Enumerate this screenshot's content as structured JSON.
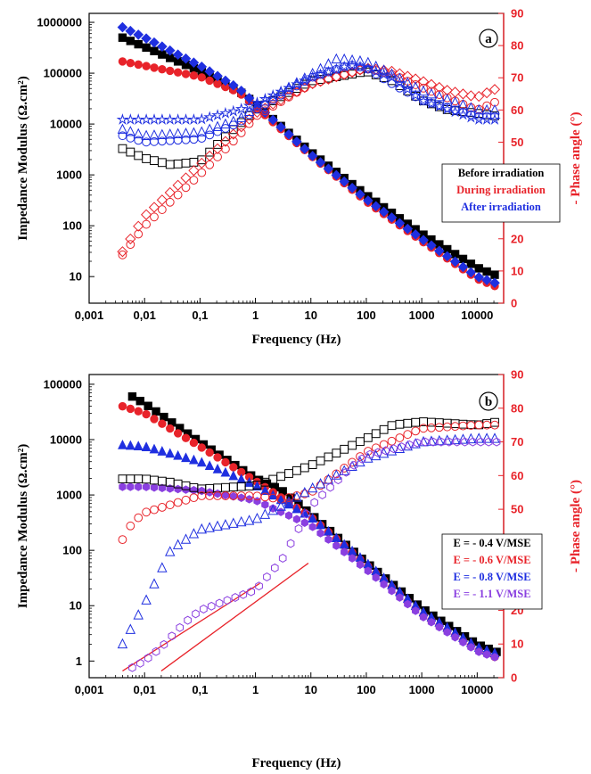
{
  "chart_data": [
    {
      "type": "scatter",
      "panel_label": "a",
      "xlabel": "Frequency (Hz)",
      "ylabel": "Impedance Modulus (Ω.cm²)",
      "y2label": "- Phase angle (°)",
      "xscale": "log",
      "yscale": "log",
      "xlim": [
        0.001,
        30000
      ],
      "ylim": [
        3,
        1500000
      ],
      "y2lim": [
        0,
        90
      ],
      "x_ticks": [
        "0,001",
        "0,01",
        "0,1",
        "1",
        "10",
        "100",
        "1000",
        "10000"
      ],
      "y_ticks": [
        "10",
        "100",
        "1000",
        "10000",
        "100000",
        "1000000"
      ],
      "y2_ticks": [
        "0",
        "10",
        "20",
        "30",
        "40",
        "50",
        "60",
        "70",
        "80",
        "90"
      ],
      "grid": false,
      "legend_position": "right",
      "legend": [
        {
          "label": "Before irradiation",
          "color": "#000000"
        },
        {
          "label": "During irradiation",
          "color": "#e8232a"
        },
        {
          "label": "After irradiation",
          "color": "#1f2fe0"
        }
      ],
      "series": [
        {
          "name": "Before irradiation",
          "color": "#000000",
          "marker": "square",
          "quantity": "modulus",
          "points": [
            [
              0.004,
              500000
            ],
            [
              0.01,
              330000
            ],
            [
              0.1,
              110000
            ],
            [
              0.5,
              45000
            ],
            [
              1,
              25000
            ],
            [
              10,
              2800
            ],
            [
              100,
              400
            ],
            [
              1000,
              70
            ],
            [
              10000,
              15
            ],
            [
              25000,
              10
            ]
          ]
        },
        {
          "name": "During irradiation",
          "color": "#e8232a",
          "marker": "circle",
          "quantity": "modulus",
          "points": [
            [
              0.004,
              170000
            ],
            [
              0.01,
              140000
            ],
            [
              0.1,
              85000
            ],
            [
              0.5,
              42000
            ],
            [
              1,
              22000
            ],
            [
              10,
              2400
            ],
            [
              100,
              300
            ],
            [
              1000,
              50
            ],
            [
              10000,
              9
            ],
            [
              25000,
              6
            ]
          ]
        },
        {
          "name": "After irradiation",
          "color": "#1f2fe0",
          "marker": "diamond",
          "quantity": "modulus",
          "points": [
            [
              0.004,
              800000
            ],
            [
              0.01,
              500000
            ],
            [
              0.1,
              140000
            ],
            [
              0.5,
              50000
            ],
            [
              1,
              25000
            ],
            [
              10,
              2500
            ],
            [
              100,
              330
            ],
            [
              1000,
              55
            ],
            [
              10000,
              10
            ],
            [
              25000,
              7
            ]
          ]
        },
        {
          "name": "Before irradiation",
          "color": "#000000",
          "marker": "square-open",
          "quantity": "phase",
          "points": [
            [
              0.004,
              48
            ],
            [
              0.01,
              45
            ],
            [
              0.03,
              43
            ],
            [
              0.1,
              44
            ],
            [
              0.3,
              52
            ],
            [
              1,
              60
            ],
            [
              10,
              69
            ],
            [
              50,
              71
            ],
            [
              100,
              72
            ],
            [
              300,
              69
            ],
            [
              1000,
              63
            ],
            [
              3000,
              60
            ],
            [
              10000,
              59
            ],
            [
              25000,
              58
            ]
          ]
        },
        {
          "name": "During irradiation",
          "color": "#e8232a",
          "marker": "circle-open",
          "quantity": "phase",
          "points": [
            [
              0.004,
              15
            ],
            [
              0.01,
              24
            ],
            [
              0.1,
              40
            ],
            [
              0.5,
              52
            ],
            [
              1,
              58
            ],
            [
              10,
              68
            ],
            [
              100,
              73
            ],
            [
              300,
              71
            ],
            [
              1000,
              67
            ],
            [
              10000,
              60
            ],
            [
              25000,
              63
            ]
          ]
        },
        {
          "name": "During irradiation",
          "color": "#e8232a",
          "marker": "diamond-open",
          "quantity": "phase",
          "points": [
            [
              0.004,
              16
            ],
            [
              0.01,
              27
            ],
            [
              0.1,
              43
            ],
            [
              0.5,
              54
            ],
            [
              1,
              59
            ],
            [
              10,
              68
            ],
            [
              100,
              73
            ],
            [
              300,
              72
            ],
            [
              1000,
              69
            ],
            [
              3000,
              66
            ],
            [
              10000,
              64
            ],
            [
              25000,
              67
            ]
          ]
        },
        {
          "name": "After irradiation",
          "color": "#1f2fe0",
          "marker": "triangle-open",
          "quantity": "phase",
          "points": [
            [
              0.004,
              54
            ],
            [
              0.01,
              52
            ],
            [
              0.1,
              53
            ],
            [
              0.5,
              57
            ],
            [
              1,
              61
            ],
            [
              10,
              71
            ],
            [
              30,
              76
            ],
            [
              100,
              75
            ],
            [
              300,
              71
            ],
            [
              1000,
              66
            ],
            [
              10000,
              60
            ],
            [
              25000,
              60
            ]
          ]
        },
        {
          "name": "After irradiation",
          "color": "#1f2fe0",
          "marker": "star-open",
          "quantity": "phase",
          "points": [
            [
              0.004,
              57
            ],
            [
              0.01,
              57
            ],
            [
              0.1,
              57
            ],
            [
              0.5,
              60
            ],
            [
              1,
              62
            ],
            [
              10,
              70
            ],
            [
              50,
              74
            ],
            [
              100,
              73
            ],
            [
              300,
              70
            ],
            [
              1000,
              63
            ],
            [
              10000,
              57
            ],
            [
              25000,
              57
            ]
          ]
        },
        {
          "name": "After irradiation",
          "color": "#1f2fe0",
          "marker": "circle-open",
          "quantity": "phase",
          "points": [
            [
              0.004,
              52
            ],
            [
              0.01,
              50
            ],
            [
              0.1,
              51
            ],
            [
              0.5,
              56
            ],
            [
              1,
              60
            ],
            [
              10,
              70
            ],
            [
              50,
              74
            ],
            [
              100,
              73
            ],
            [
              300,
              68
            ],
            [
              1000,
              63
            ],
            [
              10000,
              58
            ],
            [
              25000,
              58
            ]
          ]
        }
      ]
    },
    {
      "type": "scatter",
      "panel_label": "b",
      "xlabel": "Frequency (Hz)",
      "ylabel": "Impedance Modulus (Ω.cm²)",
      "y2label": "- Phase angle (°)",
      "xscale": "log",
      "yscale": "log",
      "xlim": [
        0.001,
        30000
      ],
      "ylim": [
        0.5,
        150000
      ],
      "y2lim": [
        0,
        90
      ],
      "x_ticks": [
        "0,001",
        "0,01",
        "0,1",
        "1",
        "10",
        "100",
        "1000",
        "10000"
      ],
      "y_ticks": [
        "1",
        "10",
        "100",
        "1000",
        "10000",
        "100000"
      ],
      "y2_ticks": [
        "0",
        "10",
        "20",
        "30",
        "40",
        "50",
        "60",
        "70",
        "80",
        "90"
      ],
      "grid": false,
      "legend_position": "right",
      "legend": [
        {
          "label": "E = - 0.4 V/MSE",
          "color": "#000000"
        },
        {
          "label": "E = - 0.6 V/MSE",
          "color": "#e8232a"
        },
        {
          "label": "E = - 0.8 V/MSE",
          "color": "#1f2fe0"
        },
        {
          "label": "E = - 1.1 V/MSE",
          "color": "#8a3fe0"
        }
      ],
      "series": [
        {
          "name": "E = - 0.4 V/MSE",
          "color": "#000000",
          "marker": "square",
          "quantity": "modulus",
          "points": [
            [
              0.006,
              60000
            ],
            [
              0.01,
              45000
            ],
            [
              0.1,
              9000
            ],
            [
              1,
              2000
            ],
            [
              3,
              1200
            ],
            [
              10,
              450
            ],
            [
              100,
              60
            ],
            [
              1000,
              9
            ],
            [
              10000,
              2
            ],
            [
              25000,
              1.4
            ]
          ]
        },
        {
          "name": "E = - 0.6 V/MSE",
          "color": "#e8232a",
          "marker": "circle",
          "quantity": "modulus",
          "points": [
            [
              0.004,
              40000
            ],
            [
              0.01,
              30000
            ],
            [
              0.1,
              7500
            ],
            [
              1,
              1800
            ],
            [
              10,
              400
            ],
            [
              100,
              55
            ],
            [
              1000,
              7
            ],
            [
              10000,
              1.6
            ],
            [
              25000,
              1.1
            ]
          ]
        },
        {
          "name": "E = - 0.8 V/MSE",
          "color": "#1f2fe0",
          "marker": "triangle",
          "quantity": "modulus",
          "points": [
            [
              0.004,
              8000
            ],
            [
              0.01,
              7500
            ],
            [
              0.1,
              4000
            ],
            [
              1,
              1500
            ],
            [
              10,
              400
            ],
            [
              100,
              60
            ],
            [
              1000,
              8
            ],
            [
              10000,
              1.8
            ],
            [
              25000,
              1.3
            ]
          ]
        },
        {
          "name": "E = - 1.1 V/MSE",
          "color": "#8a3fe0",
          "marker": "hexagon",
          "quantity": "modulus",
          "points": [
            [
              0.004,
              1400
            ],
            [
              0.01,
              1400
            ],
            [
              0.1,
              1200
            ],
            [
              1,
              800
            ],
            [
              10,
              280
            ],
            [
              100,
              45
            ],
            [
              1000,
              6.5
            ],
            [
              10000,
              1.5
            ],
            [
              25000,
              1.1
            ]
          ]
        },
        {
          "name": "E = - 0.4 V/MSE",
          "color": "#000000",
          "marker": "square-open",
          "quantity": "phase",
          "points": [
            [
              0.004,
              59
            ],
            [
              0.01,
              59
            ],
            [
              0.03,
              58
            ],
            [
              0.1,
              56
            ],
            [
              1,
              57
            ],
            [
              10,
              63
            ],
            [
              100,
              71
            ],
            [
              300,
              75
            ],
            [
              1000,
              76
            ],
            [
              10000,
              75
            ],
            [
              25000,
              76
            ]
          ]
        },
        {
          "name": "E = - 0.6 V/MSE",
          "color": "#e8232a",
          "marker": "circle-open",
          "quantity": "phase",
          "points": [
            [
              0.004,
              41
            ],
            [
              0.006,
              46
            ],
            [
              0.01,
              49
            ],
            [
              0.1,
              54
            ],
            [
              1,
              54
            ],
            [
              3,
              53
            ],
            [
              10,
              55
            ],
            [
              100,
              67
            ],
            [
              1000,
              74
            ],
            [
              10000,
              75
            ],
            [
              25000,
              75
            ]
          ]
        },
        {
          "name": "E = - 0.8 V/MSE",
          "color": "#1f2fe0",
          "marker": "triangle-open",
          "quantity": "phase",
          "points": [
            [
              0.004,
              10
            ],
            [
              0.01,
              22
            ],
            [
              0.03,
              38
            ],
            [
              0.1,
              44
            ],
            [
              1,
              47
            ],
            [
              3,
              51
            ],
            [
              10,
              56
            ],
            [
              100,
              65
            ],
            [
              1000,
              70
            ],
            [
              10000,
              71
            ],
            [
              25000,
              71
            ]
          ]
        },
        {
          "name": "E = - 1.1 V/MSE",
          "color": "#8a3fe0",
          "marker": "hexagon-open",
          "quantity": "phase",
          "points": [
            [
              0.006,
              3
            ],
            [
              0.01,
              5
            ],
            [
              0.02,
              9
            ],
            [
              0.05,
              16
            ],
            [
              0.1,
              20
            ],
            [
              1,
              26
            ],
            [
              3,
              35
            ],
            [
              10,
              51
            ],
            [
              50,
              62
            ],
            [
              100,
              66
            ],
            [
              1000,
              70
            ],
            [
              10000,
              70
            ],
            [
              25000,
              70
            ]
          ]
        }
      ],
      "annotations": [
        {
          "type": "reference-line",
          "color": "#e8232a",
          "from": [
            0.004,
            2
          ],
          "to": [
            1.2,
            28
          ]
        },
        {
          "type": "reference-line",
          "color": "#e8232a",
          "from": [
            0.02,
            2
          ],
          "to": [
            9,
            34
          ]
        }
      ]
    }
  ]
}
